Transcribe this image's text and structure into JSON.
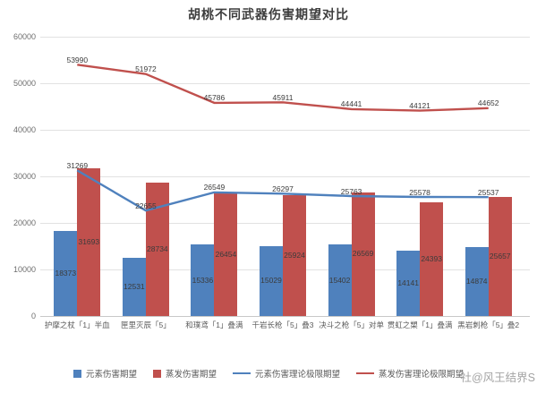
{
  "title": "胡桃不同武器伤害期望对比",
  "watermark": "社@风王结界S",
  "chart_data": {
    "type": "bar",
    "subtype": "grouped bars with overlaid lines",
    "title": "胡桃不同武器伤害期望对比",
    "xlabel": "",
    "ylabel": "",
    "ylim": [
      0,
      60000
    ],
    "yticks": [
      0,
      10000,
      20000,
      30000,
      40000,
      50000,
      60000
    ],
    "grid": true,
    "legend_position": "bottom",
    "categories": [
      "护摩之杖「1」半血",
      "匣里灭辰「5」",
      "和璞鸢「1」叠满",
      "千岩长枪「5」叠3",
      "决斗之枪「5」对单",
      "贯虹之槊「1」叠满",
      "黑岩刺枪「5」叠2"
    ],
    "series": [
      {
        "name": "元素伤害期望",
        "kind": "bar",
        "color": "#4F81BD",
        "values": [
          18373,
          12531,
          15336,
          15029,
          15402,
          14141,
          14874
        ]
      },
      {
        "name": "蒸发伤害期望",
        "kind": "bar",
        "color": "#C0504D",
        "values": [
          31693,
          28734,
          26454,
          25924,
          26569,
          24393,
          25657
        ]
      },
      {
        "name": "元素伤害理论极限期望",
        "kind": "line",
        "color": "#4F81BD",
        "values": [
          31269,
          22655,
          26549,
          26297,
          25763,
          25578,
          25537
        ]
      },
      {
        "name": "蒸发伤害理论极限期望",
        "kind": "line",
        "color": "#C0504D",
        "values": [
          53990,
          51972,
          45786,
          45911,
          44441,
          44121,
          44652
        ]
      }
    ]
  }
}
